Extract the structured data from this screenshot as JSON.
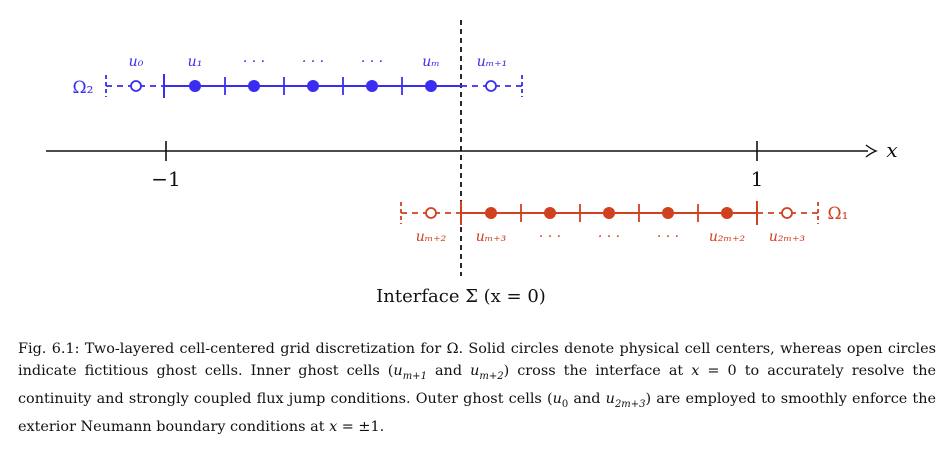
{
  "colors": {
    "omega2": "#3a2cf0",
    "omega1": "#d1401f",
    "axis": "#111111"
  },
  "axis": {
    "x_label": "x",
    "ticks": [
      "−1",
      "1"
    ],
    "interface_label": "Interface Σ (x = 0)"
  },
  "domain2": {
    "label": "Ω₂",
    "point_labels": [
      "u₀",
      "u₁",
      "· · ·",
      "· · ·",
      "· · ·",
      "uₘ",
      "uₘ₊₁"
    ]
  },
  "domain1": {
    "label": "Ω₁",
    "point_labels": [
      "uₘ₊₂",
      "uₘ₊₃",
      "· · ·",
      "· · ·",
      "· · ·",
      "u₂ₘ₊₂",
      "u₂ₘ₊₃"
    ]
  },
  "caption": {
    "fig": "Fig. 6.1:",
    "t1": " Two-layered cell-centered grid discretization for Ω. Solid circles denote physical cell centers, whereas open circles indicate fictitious ghost cells. Inner ghost cells (",
    "m1": "u",
    "s1": "m+1",
    "t2": " and ",
    "m2": "u",
    "s2": "m+2",
    "t3": ") cross the interface at ",
    "m3": "x",
    "t4": " = 0 to accurately resolve the continuity and strongly coupled flux jump conditions. Outer ghost cells (",
    "m4": "u",
    "s4": "0",
    "t5": " and ",
    "m5": "u",
    "s5": "2m+3",
    "t6": ") are employed to smoothly enforce the exterior Neumann boundary conditions at ",
    "m6": "x",
    "t7": " = ±1."
  }
}
